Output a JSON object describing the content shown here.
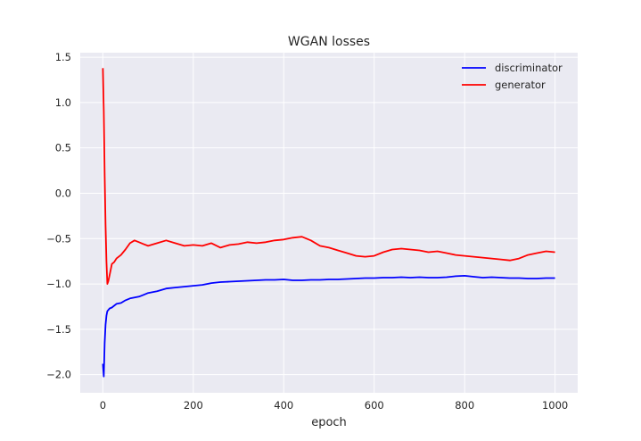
{
  "chart_data": {
    "type": "line",
    "title": "WGAN losses",
    "xlabel": "epoch",
    "ylabel": "",
    "xlim": [
      -50,
      1050
    ],
    "ylim": [
      -2.2,
      1.55
    ],
    "xticks": [
      0,
      200,
      400,
      600,
      800,
      1000
    ],
    "xtick_labels": [
      "0",
      "200",
      "400",
      "600",
      "800",
      "1000"
    ],
    "yticks": [
      -2.0,
      -1.5,
      -1.0,
      -0.5,
      0.0,
      0.5,
      1.0,
      1.5
    ],
    "ytick_labels": [
      "−2.0",
      "−1.5",
      "−1.0",
      "−0.5",
      "0.0",
      "0.5",
      "1.0",
      "1.5"
    ],
    "grid": true,
    "legend_position": "upper right",
    "series": [
      {
        "name": "discriminator",
        "color": "#0000ff",
        "x": [
          0,
          2,
          4,
          6,
          8,
          10,
          15,
          20,
          25,
          30,
          40,
          50,
          60,
          70,
          80,
          90,
          100,
          120,
          140,
          160,
          180,
          200,
          220,
          240,
          260,
          280,
          300,
          320,
          340,
          360,
          380,
          400,
          420,
          440,
          460,
          480,
          500,
          520,
          540,
          560,
          580,
          600,
          620,
          640,
          660,
          680,
          700,
          720,
          740,
          760,
          780,
          800,
          820,
          840,
          860,
          880,
          900,
          920,
          940,
          960,
          980,
          1000
        ],
        "values": [
          -1.88,
          -2.02,
          -1.65,
          -1.45,
          -1.35,
          -1.3,
          -1.27,
          -1.26,
          -1.24,
          -1.22,
          -1.21,
          -1.18,
          -1.16,
          -1.15,
          -1.14,
          -1.12,
          -1.1,
          -1.08,
          -1.05,
          -1.04,
          -1.03,
          -1.02,
          -1.01,
          -0.99,
          -0.98,
          -0.975,
          -0.97,
          -0.965,
          -0.96,
          -0.955,
          -0.955,
          -0.95,
          -0.96,
          -0.96,
          -0.955,
          -0.955,
          -0.95,
          -0.95,
          -0.945,
          -0.94,
          -0.935,
          -0.935,
          -0.93,
          -0.93,
          -0.925,
          -0.93,
          -0.925,
          -0.93,
          -0.93,
          -0.925,
          -0.915,
          -0.91,
          -0.92,
          -0.93,
          -0.925,
          -0.93,
          -0.935,
          -0.935,
          -0.94,
          -0.94,
          -0.935,
          -0.935
        ]
      },
      {
        "name": "generator",
        "color": "#ff0000",
        "x": [
          0,
          2,
          4,
          6,
          8,
          10,
          12,
          15,
          20,
          25,
          30,
          40,
          50,
          60,
          70,
          80,
          90,
          100,
          120,
          140,
          160,
          180,
          200,
          220,
          240,
          260,
          280,
          300,
          320,
          340,
          360,
          380,
          400,
          420,
          440,
          460,
          480,
          500,
          520,
          540,
          560,
          580,
          600,
          620,
          640,
          660,
          680,
          700,
          720,
          740,
          760,
          780,
          800,
          820,
          840,
          860,
          880,
          900,
          920,
          940,
          960,
          980,
          1000
        ],
        "values": [
          1.38,
          0.9,
          0.2,
          -0.35,
          -0.75,
          -1.0,
          -0.97,
          -0.9,
          -0.78,
          -0.76,
          -0.72,
          -0.68,
          -0.62,
          -0.55,
          -0.52,
          -0.54,
          -0.56,
          -0.58,
          -0.55,
          -0.52,
          -0.55,
          -0.58,
          -0.57,
          -0.58,
          -0.55,
          -0.6,
          -0.57,
          -0.56,
          -0.54,
          -0.55,
          -0.54,
          -0.52,
          -0.51,
          -0.49,
          -0.48,
          -0.52,
          -0.58,
          -0.6,
          -0.63,
          -0.66,
          -0.69,
          -0.7,
          -0.69,
          -0.65,
          -0.62,
          -0.61,
          -0.62,
          -0.63,
          -0.65,
          -0.64,
          -0.66,
          -0.68,
          -0.69,
          -0.7,
          -0.71,
          -0.72,
          -0.73,
          -0.74,
          -0.72,
          -0.68,
          -0.66,
          -0.64,
          -0.65
        ]
      }
    ]
  }
}
